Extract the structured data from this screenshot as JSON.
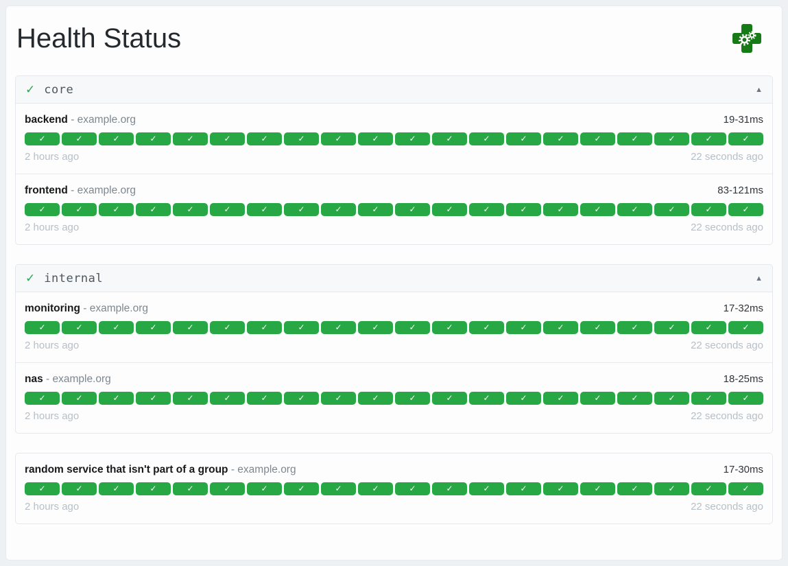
{
  "app": {
    "title": "Health Status",
    "logo_icon": "gatus-health-cross-icon"
  },
  "ui": {
    "group_status_glyph": "✓",
    "collapse_glyph": "▲",
    "check_glyph": "✓",
    "host_separator": "-",
    "badges_per_row": 20
  },
  "colors": {
    "success_badge": "#28a745",
    "logo_green": "#167a16",
    "group_check": "#2ea44f",
    "page_background": "#eef1f4"
  },
  "sections": [
    {
      "type": "group",
      "name": "core",
      "endpoints": [
        {
          "name": "backend",
          "host": "example.org",
          "response_time": "19-31ms",
          "oldest_result": "2 hours ago",
          "newest_result": "22 seconds ago",
          "checks": {
            "count": 20,
            "status": "success"
          }
        },
        {
          "name": "frontend",
          "host": "example.org",
          "response_time": "83-121ms",
          "oldest_result": "2 hours ago",
          "newest_result": "22 seconds ago",
          "checks": {
            "count": 20,
            "status": "success"
          }
        }
      ]
    },
    {
      "type": "group",
      "name": "internal",
      "endpoints": [
        {
          "name": "monitoring",
          "host": "example.org",
          "response_time": "17-32ms",
          "oldest_result": "2 hours ago",
          "newest_result": "22 seconds ago",
          "checks": {
            "count": 20,
            "status": "success"
          }
        },
        {
          "name": "nas",
          "host": "example.org",
          "response_time": "18-25ms",
          "oldest_result": "2 hours ago",
          "newest_result": "22 seconds ago",
          "checks": {
            "count": 20,
            "status": "success"
          }
        }
      ]
    },
    {
      "type": "ungrouped",
      "name": "",
      "endpoints": [
        {
          "name": "random service that isn't part of a group",
          "host": "example.org",
          "response_time": "17-30ms",
          "oldest_result": "2 hours ago",
          "newest_result": "22 seconds ago",
          "checks": {
            "count": 20,
            "status": "success"
          }
        }
      ]
    }
  ]
}
